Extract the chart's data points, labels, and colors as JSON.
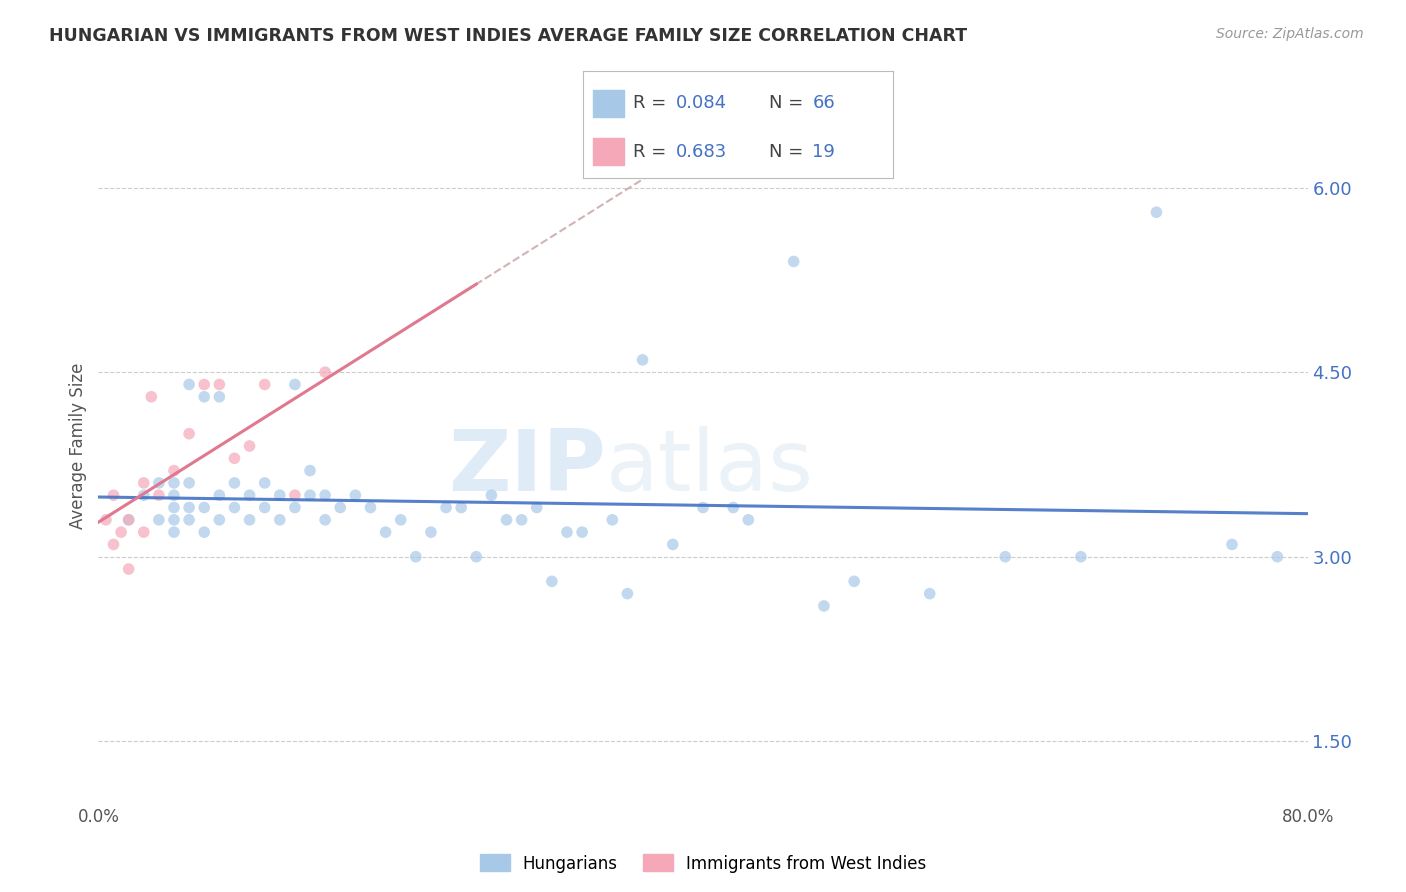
{
  "title": "HUNGARIAN VS IMMIGRANTS FROM WEST INDIES AVERAGE FAMILY SIZE CORRELATION CHART",
  "source": "Source: ZipAtlas.com",
  "ylabel": "Average Family Size",
  "xlim": [
    0.0,
    0.8
  ],
  "ylim": [
    1.0,
    6.8
  ],
  "yticks": [
    1.5,
    3.0,
    4.5,
    6.0
  ],
  "xticks": [
    0.0,
    0.1,
    0.2,
    0.3,
    0.4,
    0.5,
    0.6,
    0.7,
    0.8
  ],
  "xtick_labels": [
    "0.0%",
    "",
    "",
    "",
    "",
    "",
    "",
    "",
    "80.0%"
  ],
  "blue_color": "#a8c8e8",
  "pink_color": "#f4a8b8",
  "blue_line_color": "#4472c4",
  "pink_line_color": "#e07890",
  "dashed_line_color": "#c8a0a0",
  "scatter_alpha": 0.7,
  "marker_size": 70,
  "blue_scatter_x": [
    0.02,
    0.03,
    0.04,
    0.04,
    0.05,
    0.05,
    0.05,
    0.05,
    0.05,
    0.06,
    0.06,
    0.06,
    0.06,
    0.07,
    0.07,
    0.07,
    0.08,
    0.08,
    0.08,
    0.09,
    0.09,
    0.1,
    0.1,
    0.11,
    0.11,
    0.12,
    0.12,
    0.13,
    0.13,
    0.14,
    0.14,
    0.15,
    0.15,
    0.16,
    0.17,
    0.18,
    0.19,
    0.2,
    0.21,
    0.22,
    0.23,
    0.24,
    0.26,
    0.27,
    0.29,
    0.31,
    0.32,
    0.34,
    0.36,
    0.38,
    0.4,
    0.43,
    0.46,
    0.5,
    0.55,
    0.6,
    0.65,
    0.7,
    0.75,
    0.78,
    0.3,
    0.35,
    0.25,
    0.28,
    0.42,
    0.48
  ],
  "blue_scatter_y": [
    3.3,
    3.5,
    3.3,
    3.6,
    3.2,
    3.3,
    3.4,
    3.5,
    3.6,
    3.3,
    3.4,
    3.6,
    4.4,
    3.2,
    3.4,
    4.3,
    3.3,
    3.5,
    4.3,
    3.4,
    3.6,
    3.3,
    3.5,
    3.4,
    3.6,
    3.3,
    3.5,
    3.4,
    4.4,
    3.5,
    3.7,
    3.3,
    3.5,
    3.4,
    3.5,
    3.4,
    3.2,
    3.3,
    3.0,
    3.2,
    3.4,
    3.4,
    3.5,
    3.3,
    3.4,
    3.2,
    3.2,
    3.3,
    4.6,
    3.1,
    3.4,
    3.3,
    5.4,
    2.8,
    2.7,
    3.0,
    3.0,
    5.8,
    3.1,
    3.0,
    2.8,
    2.7,
    3.0,
    3.3,
    3.4,
    2.6
  ],
  "pink_scatter_x": [
    0.005,
    0.01,
    0.01,
    0.015,
    0.02,
    0.02,
    0.03,
    0.03,
    0.035,
    0.04,
    0.05,
    0.06,
    0.07,
    0.08,
    0.09,
    0.1,
    0.11,
    0.13,
    0.15
  ],
  "pink_scatter_y": [
    3.3,
    3.1,
    3.5,
    3.2,
    3.3,
    2.9,
    3.2,
    3.6,
    4.3,
    3.5,
    3.7,
    4.0,
    4.4,
    4.4,
    3.8,
    3.9,
    4.4,
    3.5,
    4.5
  ],
  "watermark_zip": "ZIP",
  "watermark_atlas": "atlas",
  "background_color": "#ffffff",
  "grid_color": "#cccccc"
}
